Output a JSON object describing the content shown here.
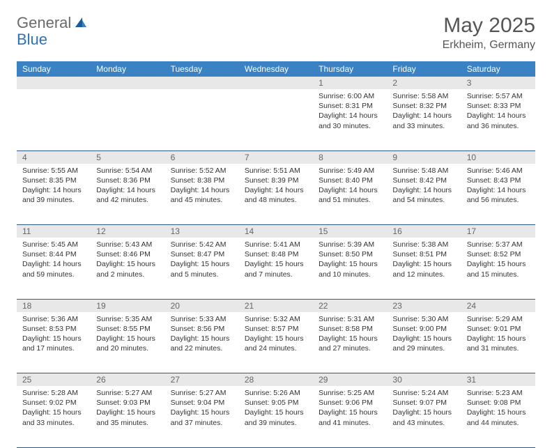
{
  "logo": {
    "text1": "General",
    "text2": "Blue"
  },
  "title": "May 2025",
  "location": "Erkheim, Germany",
  "colors": {
    "header_bg": "#3b82c4",
    "header_text": "#ffffff",
    "daynum_bg": "#e8e8e8",
    "daynum_text": "#666666",
    "border": "#2d5a8a",
    "logo_gray": "#6b6b6b",
    "logo_blue": "#2d72b8"
  },
  "weekdays": [
    "Sunday",
    "Monday",
    "Tuesday",
    "Wednesday",
    "Thursday",
    "Friday",
    "Saturday"
  ],
  "weeks": [
    [
      {
        "day": "",
        "sunrise": "",
        "sunset": "",
        "daylight": ""
      },
      {
        "day": "",
        "sunrise": "",
        "sunset": "",
        "daylight": ""
      },
      {
        "day": "",
        "sunrise": "",
        "sunset": "",
        "daylight": ""
      },
      {
        "day": "",
        "sunrise": "",
        "sunset": "",
        "daylight": ""
      },
      {
        "day": "1",
        "sunrise": "Sunrise: 6:00 AM",
        "sunset": "Sunset: 8:31 PM",
        "daylight": "Daylight: 14 hours and 30 minutes."
      },
      {
        "day": "2",
        "sunrise": "Sunrise: 5:58 AM",
        "sunset": "Sunset: 8:32 PM",
        "daylight": "Daylight: 14 hours and 33 minutes."
      },
      {
        "day": "3",
        "sunrise": "Sunrise: 5:57 AM",
        "sunset": "Sunset: 8:33 PM",
        "daylight": "Daylight: 14 hours and 36 minutes."
      }
    ],
    [
      {
        "day": "4",
        "sunrise": "Sunrise: 5:55 AM",
        "sunset": "Sunset: 8:35 PM",
        "daylight": "Daylight: 14 hours and 39 minutes."
      },
      {
        "day": "5",
        "sunrise": "Sunrise: 5:54 AM",
        "sunset": "Sunset: 8:36 PM",
        "daylight": "Daylight: 14 hours and 42 minutes."
      },
      {
        "day": "6",
        "sunrise": "Sunrise: 5:52 AM",
        "sunset": "Sunset: 8:38 PM",
        "daylight": "Daylight: 14 hours and 45 minutes."
      },
      {
        "day": "7",
        "sunrise": "Sunrise: 5:51 AM",
        "sunset": "Sunset: 8:39 PM",
        "daylight": "Daylight: 14 hours and 48 minutes."
      },
      {
        "day": "8",
        "sunrise": "Sunrise: 5:49 AM",
        "sunset": "Sunset: 8:40 PM",
        "daylight": "Daylight: 14 hours and 51 minutes."
      },
      {
        "day": "9",
        "sunrise": "Sunrise: 5:48 AM",
        "sunset": "Sunset: 8:42 PM",
        "daylight": "Daylight: 14 hours and 54 minutes."
      },
      {
        "day": "10",
        "sunrise": "Sunrise: 5:46 AM",
        "sunset": "Sunset: 8:43 PM",
        "daylight": "Daylight: 14 hours and 56 minutes."
      }
    ],
    [
      {
        "day": "11",
        "sunrise": "Sunrise: 5:45 AM",
        "sunset": "Sunset: 8:44 PM",
        "daylight": "Daylight: 14 hours and 59 minutes."
      },
      {
        "day": "12",
        "sunrise": "Sunrise: 5:43 AM",
        "sunset": "Sunset: 8:46 PM",
        "daylight": "Daylight: 15 hours and 2 minutes."
      },
      {
        "day": "13",
        "sunrise": "Sunrise: 5:42 AM",
        "sunset": "Sunset: 8:47 PM",
        "daylight": "Daylight: 15 hours and 5 minutes."
      },
      {
        "day": "14",
        "sunrise": "Sunrise: 5:41 AM",
        "sunset": "Sunset: 8:48 PM",
        "daylight": "Daylight: 15 hours and 7 minutes."
      },
      {
        "day": "15",
        "sunrise": "Sunrise: 5:39 AM",
        "sunset": "Sunset: 8:50 PM",
        "daylight": "Daylight: 15 hours and 10 minutes."
      },
      {
        "day": "16",
        "sunrise": "Sunrise: 5:38 AM",
        "sunset": "Sunset: 8:51 PM",
        "daylight": "Daylight: 15 hours and 12 minutes."
      },
      {
        "day": "17",
        "sunrise": "Sunrise: 5:37 AM",
        "sunset": "Sunset: 8:52 PM",
        "daylight": "Daylight: 15 hours and 15 minutes."
      }
    ],
    [
      {
        "day": "18",
        "sunrise": "Sunrise: 5:36 AM",
        "sunset": "Sunset: 8:53 PM",
        "daylight": "Daylight: 15 hours and 17 minutes."
      },
      {
        "day": "19",
        "sunrise": "Sunrise: 5:35 AM",
        "sunset": "Sunset: 8:55 PM",
        "daylight": "Daylight: 15 hours and 20 minutes."
      },
      {
        "day": "20",
        "sunrise": "Sunrise: 5:33 AM",
        "sunset": "Sunset: 8:56 PM",
        "daylight": "Daylight: 15 hours and 22 minutes."
      },
      {
        "day": "21",
        "sunrise": "Sunrise: 5:32 AM",
        "sunset": "Sunset: 8:57 PM",
        "daylight": "Daylight: 15 hours and 24 minutes."
      },
      {
        "day": "22",
        "sunrise": "Sunrise: 5:31 AM",
        "sunset": "Sunset: 8:58 PM",
        "daylight": "Daylight: 15 hours and 27 minutes."
      },
      {
        "day": "23",
        "sunrise": "Sunrise: 5:30 AM",
        "sunset": "Sunset: 9:00 PM",
        "daylight": "Daylight: 15 hours and 29 minutes."
      },
      {
        "day": "24",
        "sunrise": "Sunrise: 5:29 AM",
        "sunset": "Sunset: 9:01 PM",
        "daylight": "Daylight: 15 hours and 31 minutes."
      }
    ],
    [
      {
        "day": "25",
        "sunrise": "Sunrise: 5:28 AM",
        "sunset": "Sunset: 9:02 PM",
        "daylight": "Daylight: 15 hours and 33 minutes."
      },
      {
        "day": "26",
        "sunrise": "Sunrise: 5:27 AM",
        "sunset": "Sunset: 9:03 PM",
        "daylight": "Daylight: 15 hours and 35 minutes."
      },
      {
        "day": "27",
        "sunrise": "Sunrise: 5:27 AM",
        "sunset": "Sunset: 9:04 PM",
        "daylight": "Daylight: 15 hours and 37 minutes."
      },
      {
        "day": "28",
        "sunrise": "Sunrise: 5:26 AM",
        "sunset": "Sunset: 9:05 PM",
        "daylight": "Daylight: 15 hours and 39 minutes."
      },
      {
        "day": "29",
        "sunrise": "Sunrise: 5:25 AM",
        "sunset": "Sunset: 9:06 PM",
        "daylight": "Daylight: 15 hours and 41 minutes."
      },
      {
        "day": "30",
        "sunrise": "Sunrise: 5:24 AM",
        "sunset": "Sunset: 9:07 PM",
        "daylight": "Daylight: 15 hours and 43 minutes."
      },
      {
        "day": "31",
        "sunrise": "Sunrise: 5:23 AM",
        "sunset": "Sunset: 9:08 PM",
        "daylight": "Daylight: 15 hours and 44 minutes."
      }
    ]
  ]
}
